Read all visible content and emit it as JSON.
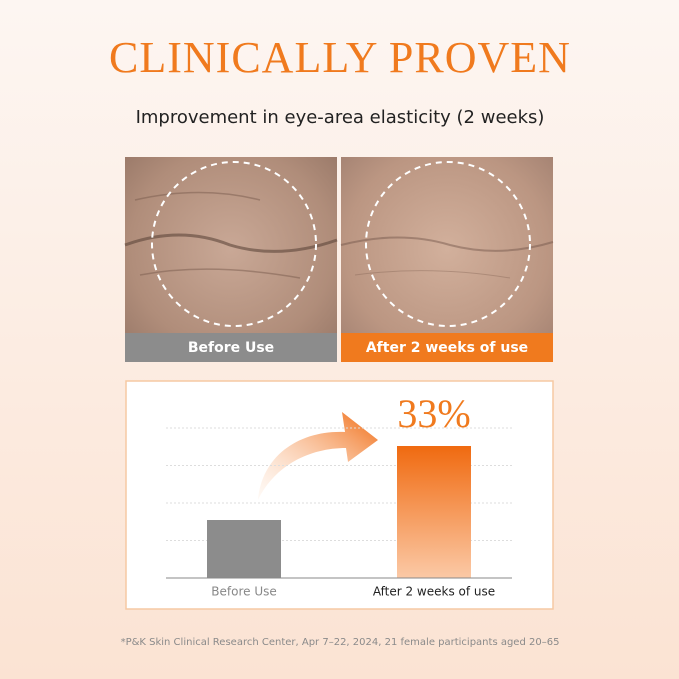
{
  "header": {
    "title": "CLINICALLY PROVEN",
    "subtitle": "Improvement in eye-area elasticity (2 weeks)"
  },
  "photos": [
    {
      "label": "Before Use",
      "color": "#8c8c8c"
    },
    {
      "label": "After 2 weeks of use",
      "color": "#f07a1e"
    }
  ],
  "chart_data": {
    "type": "bar",
    "categories": [
      "Before Use",
      "After 2 weeks of use"
    ],
    "values": [
      14.5,
      33
    ],
    "value_labels": [
      null,
      "33%"
    ],
    "colors": [
      "#8c8c8c",
      "#f07a1e"
    ],
    "ylim": [
      0,
      37.5
    ],
    "grid": true
  },
  "footnote": "*P&K Skin Clinical Research Center, Apr 7–22, 2024, 21 female participants aged 20–65"
}
